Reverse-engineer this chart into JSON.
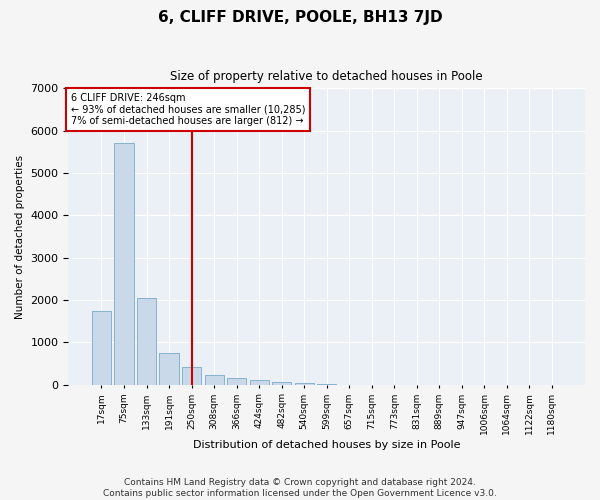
{
  "title": "6, CLIFF DRIVE, POOLE, BH13 7JD",
  "subtitle": "Size of property relative to detached houses in Poole",
  "xlabel": "Distribution of detached houses by size in Poole",
  "ylabel": "Number of detached properties",
  "bar_color": "#c9d9ea",
  "bar_edge_color": "#7aaac8",
  "background_color": "#eaf0f6",
  "grid_color": "#ffffff",
  "categories": [
    "17sqm",
    "75sqm",
    "133sqm",
    "191sqm",
    "250sqm",
    "308sqm",
    "366sqm",
    "424sqm",
    "482sqm",
    "540sqm",
    "599sqm",
    "657sqm",
    "715sqm",
    "773sqm",
    "831sqm",
    "889sqm",
    "947sqm",
    "1006sqm",
    "1064sqm",
    "1122sqm",
    "1180sqm"
  ],
  "values": [
    1750,
    5700,
    2050,
    750,
    420,
    230,
    150,
    100,
    60,
    30,
    10,
    0,
    0,
    0,
    0,
    0,
    0,
    0,
    0,
    0,
    0
  ],
  "property_line_x": 4.0,
  "property_label": "6 CLIFF DRIVE: 246sqm",
  "annotation_line1": "← 93% of detached houses are smaller (10,285)",
  "annotation_line2": "7% of semi-detached houses are larger (812) →",
  "vline_color": "#cc0000",
  "box_edge_color": "#cc0000",
  "footnote1": "Contains HM Land Registry data © Crown copyright and database right 2024.",
  "footnote2": "Contains public sector information licensed under the Open Government Licence v3.0.",
  "ylim": [
    0,
    7000
  ],
  "yticks": [
    0,
    1000,
    2000,
    3000,
    4000,
    5000,
    6000,
    7000
  ],
  "fig_facecolor": "#f5f5f5"
}
